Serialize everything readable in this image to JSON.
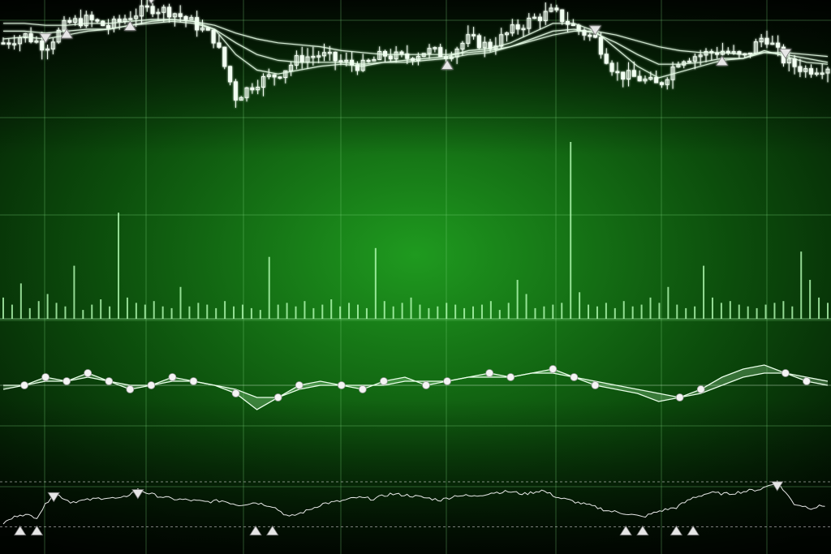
{
  "colors": {
    "background_center": "#1f9a1f",
    "background_edge": "#021202",
    "grid": "#7fd67f",
    "price_candles": "#f2fff2",
    "moving_average": "#e9ffe9",
    "volume_bars": "#b6ffb6",
    "oscillator_lines": "#eaffea",
    "oscillator_fill": "#bfffbf",
    "marker": "#e6e6e6"
  },
  "chart_data": [
    {
      "panel": "price",
      "type": "candlestick",
      "title": "",
      "xlabel": "",
      "ylabel": "",
      "grid": true,
      "legend": "none",
      "ylim": [
        0,
        100
      ],
      "approx_close": [
        78,
        82,
        76,
        88,
        90,
        86,
        92,
        96,
        94,
        88,
        80,
        50,
        58,
        62,
        70,
        72,
        68,
        66,
        72,
        70,
        74,
        72,
        80,
        76,
        84,
        90,
        94,
        86,
        80,
        62,
        60,
        56,
        70,
        72,
        74,
        70,
        82,
        68,
        64,
        66
      ],
      "moving_averages": [
        [
          88,
          88,
          87,
          87,
          88,
          88,
          89,
          90,
          90,
          89,
          87,
          83,
          80,
          78,
          77,
          76,
          74,
          73,
          72,
          72,
          72,
          72,
          73,
          74,
          76,
          79,
          82,
          84,
          84,
          82,
          79,
          76,
          74,
          73,
          73,
          72,
          73,
          73,
          72,
          71
        ],
        [
          84,
          84,
          83,
          84,
          85,
          85,
          87,
          88,
          89,
          88,
          85,
          78,
          72,
          69,
          68,
          68,
          68,
          67,
          68,
          68,
          69,
          70,
          72,
          73,
          76,
          80,
          84,
          85,
          83,
          78,
          72,
          67,
          67,
          68,
          70,
          70,
          73,
          72,
          70,
          68
        ],
        [
          80,
          81,
          80,
          82,
          84,
          85,
          87,
          89,
          90,
          89,
          85,
          72,
          64,
          62,
          64,
          66,
          67,
          66,
          68,
          69,
          70,
          71,
          74,
          75,
          78,
          83,
          88,
          88,
          84,
          75,
          66,
          60,
          63,
          66,
          69,
          70,
          74,
          71,
          68,
          67
        ]
      ],
      "buy_markers_at": [
        3,
        6,
        21,
        34
      ],
      "sell_markers_at": [
        2,
        7,
        28,
        37
      ]
    },
    {
      "panel": "volume",
      "type": "bar",
      "title": "",
      "ylim": [
        0,
        100
      ],
      "values": [
        12,
        8,
        20,
        6,
        10,
        14,
        9,
        7,
        30,
        5,
        8,
        11,
        7,
        60,
        12,
        9,
        8,
        10,
        7,
        6,
        18,
        7,
        9,
        8,
        6,
        10,
        7,
        8,
        6,
        5,
        35,
        8,
        9,
        7,
        10,
        6,
        8,
        11,
        7,
        9,
        8,
        6,
        40,
        10,
        7,
        9,
        12,
        8,
        6,
        7,
        9,
        8,
        6,
        7,
        8,
        10,
        5,
        9,
        22,
        14,
        6,
        7,
        8,
        9,
        100,
        15,
        8,
        7,
        9,
        6,
        10,
        7,
        8,
        12,
        9,
        18,
        8,
        6,
        7,
        30,
        12,
        9,
        10,
        8,
        7,
        6,
        8,
        9,
        10,
        7,
        38,
        22,
        12,
        9
      ]
    },
    {
      "panel": "oscillator",
      "type": "line",
      "title": "",
      "ylim": [
        -10,
        10
      ],
      "series": [
        {
          "values": [
            -1,
            0,
            2,
            1,
            3,
            1,
            -1,
            0,
            2,
            1,
            0,
            -2,
            -6,
            -3,
            0,
            1,
            0,
            -1,
            1,
            2,
            0,
            1,
            2,
            3,
            2,
            3,
            4,
            2,
            0,
            -1,
            -2,
            -4,
            -3,
            -1,
            2,
            4,
            5,
            3,
            1,
            0
          ]
        },
        {
          "values": [
            0,
            0,
            1,
            1,
            2,
            1,
            0,
            0,
            1,
            1,
            0,
            -1,
            -3,
            -3,
            -1,
            0,
            0,
            0,
            0,
            1,
            1,
            1,
            2,
            2,
            2,
            3,
            3,
            2,
            1,
            0,
            -1,
            -2,
            -3,
            -2,
            0,
            2,
            3,
            3,
            2,
            1
          ]
        }
      ]
    },
    {
      "panel": "indicator",
      "type": "line",
      "title": "",
      "ylim": [
        0,
        100
      ],
      "values": [
        20,
        35,
        30,
        70,
        55,
        58,
        62,
        60,
        75,
        66,
        60,
        58,
        55,
        57,
        50,
        54,
        48,
        30,
        40,
        52,
        56,
        62,
        60,
        68,
        66,
        62,
        58,
        66,
        64,
        70,
        72,
        68,
        74,
        62,
        55,
        48,
        40,
        36,
        30,
        40,
        46,
        62,
        70,
        68,
        72,
        76,
        88,
        52,
        45,
        50
      ],
      "buy_markers_at": [
        1,
        2,
        15,
        16,
        37,
        38,
        40,
        41
      ],
      "sell_markers_at": [
        3,
        8,
        46
      ]
    }
  ]
}
